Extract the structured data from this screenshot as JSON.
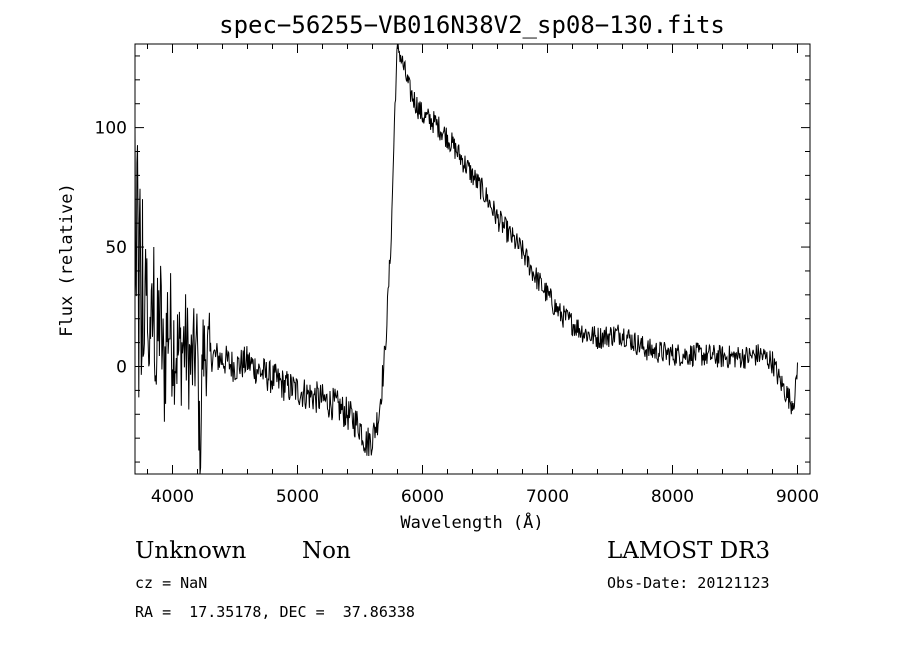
{
  "chart_data": {
    "type": "line",
    "title": "spec−56255−VB016N38V2_sp08−130.fits",
    "xlabel": "Wavelength (Å)",
    "ylabel": "Flux (relative)",
    "xlim": [
      3700,
      9100
    ],
    "ylim": [
      -45,
      135
    ],
    "x_ticks": [
      4000,
      5000,
      6000,
      7000,
      8000,
      9000
    ],
    "x_tick_labels": [
      "4000",
      "5000",
      "6000",
      "7000",
      "8000",
      "9000"
    ],
    "y_ticks": [
      0,
      50,
      100
    ],
    "y_tick_labels": [
      "0",
      "50",
      "100"
    ],
    "grid": false,
    "line_color": "#000000",
    "anchors": [
      [
        3700,
        90
      ],
      [
        3710,
        20
      ],
      [
        3720,
        80
      ],
      [
        3730,
        10
      ],
      [
        3740,
        60
      ],
      [
        3750,
        -20
      ],
      [
        3760,
        50
      ],
      [
        3770,
        0
      ],
      [
        3780,
        55
      ],
      [
        3790,
        5
      ],
      [
        3800,
        40
      ],
      [
        3810,
        -15
      ],
      [
        3820,
        35
      ],
      [
        3830,
        5
      ],
      [
        3850,
        30
      ],
      [
        3870,
        0
      ],
      [
        3900,
        25
      ],
      [
        3930,
        -5
      ],
      [
        3960,
        20
      ],
      [
        4000,
        12
      ],
      [
        4050,
        5
      ],
      [
        4100,
        10
      ],
      [
        4150,
        0
      ],
      [
        4200,
        8
      ],
      [
        4220,
        -45
      ],
      [
        4240,
        6
      ],
      [
        4300,
        5
      ],
      [
        4400,
        3
      ],
      [
        4500,
        0
      ],
      [
        4600,
        2
      ],
      [
        4700,
        -2
      ],
      [
        4800,
        -5
      ],
      [
        4900,
        -8
      ],
      [
        5000,
        -10
      ],
      [
        5100,
        -12
      ],
      [
        5200,
        -14
      ],
      [
        5300,
        -16
      ],
      [
        5400,
        -20
      ],
      [
        5500,
        -25
      ],
      [
        5550,
        -32
      ],
      [
        5600,
        -30
      ],
      [
        5650,
        -20
      ],
      [
        5700,
        5
      ],
      [
        5750,
        55
      ],
      [
        5780,
        110
      ],
      [
        5800,
        135
      ],
      [
        5850,
        125
      ],
      [
        5900,
        115
      ],
      [
        6000,
        105
      ],
      [
        6100,
        102
      ],
      [
        6200,
        96
      ],
      [
        6300,
        88
      ],
      [
        6400,
        80
      ],
      [
        6500,
        72
      ],
      [
        6600,
        62
      ],
      [
        6700,
        55
      ],
      [
        6800,
        48
      ],
      [
        6900,
        38
      ],
      [
        7000,
        30
      ],
      [
        7100,
        22
      ],
      [
        7200,
        18
      ],
      [
        7300,
        14
      ],
      [
        7400,
        12
      ],
      [
        7500,
        13
      ],
      [
        7600,
        14
      ],
      [
        7700,
        10
      ],
      [
        7800,
        7
      ],
      [
        7900,
        6
      ],
      [
        8000,
        5
      ],
      [
        8200,
        5
      ],
      [
        8400,
        4
      ],
      [
        8600,
        4
      ],
      [
        8700,
        5
      ],
      [
        8800,
        2
      ],
      [
        8850,
        -5
      ],
      [
        8900,
        -10
      ],
      [
        8950,
        -15
      ],
      [
        8980,
        -13
      ],
      [
        9000,
        0
      ]
    ],
    "noise_amplitude_blue": 28,
    "noise_amplitude_red": 3
  },
  "footer": {
    "class_label": "Unknown",
    "subclass_label": "Non",
    "redshift": "cz = NaN",
    "coords": "RA =  17.35178, DEC =  37.86338",
    "survey": "LAMOST DR3",
    "obs_date": "Obs-Date: 20121123"
  }
}
